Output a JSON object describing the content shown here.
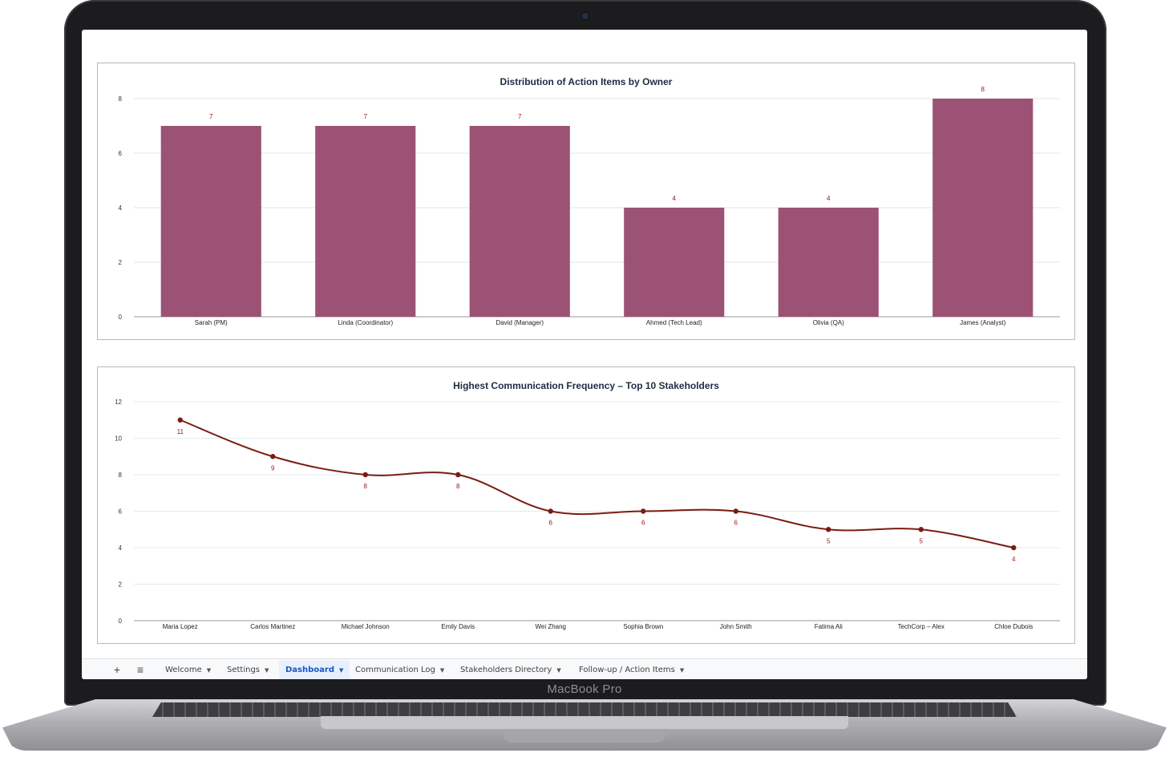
{
  "device": {
    "brand_label": "MacBook Pro"
  },
  "colors": {
    "bar_fill": "#9b5275",
    "line_stroke": "#7b1c12",
    "label_red": "#8b1a1a",
    "active_tab": "#1a56c4"
  },
  "icons": {
    "add_sheet": "plus-icon",
    "all_sheets": "menu-icon",
    "tab_dropdown": "caret-down-icon"
  },
  "chart_data": [
    {
      "type": "bar",
      "title": "Distribution of Action Items by Owner",
      "categories": [
        "Sarah (PM)",
        "Linda (Coordinator)",
        "David (Manager)",
        "Ahmed (Tech Lead)",
        "Olivia (QA)",
        "James (Analyst)"
      ],
      "values": [
        7,
        7,
        7,
        4,
        4,
        8
      ],
      "ylim": [
        0,
        8
      ],
      "yticks": [
        0,
        2,
        4,
        6,
        8
      ],
      "grid": true,
      "data_labels": true,
      "color": "#9b5275"
    },
    {
      "type": "line",
      "title": "Highest Communication Frequency – Top 10 Stakeholders",
      "categories": [
        "Maria Lopez",
        "Carlos Martinez",
        "Michael Johnson",
        "Emily Davis",
        "Wei Zhang",
        "Sophia Brown",
        "John Smith",
        "Fatima Ali",
        "TechCorp – Alex",
        "Chloe Dubois"
      ],
      "values": [
        11,
        9,
        8,
        8,
        6,
        6,
        6,
        5,
        5,
        4
      ],
      "ylim": [
        0,
        12
      ],
      "yticks": [
        0,
        2,
        4,
        6,
        8,
        10,
        12
      ],
      "grid": true,
      "smooth": true,
      "data_labels": true,
      "color": "#7b1c12"
    }
  ],
  "tabbar": {
    "add_label": "+",
    "menu_label": "≡",
    "tabs": [
      {
        "label": "Welcome",
        "active": false
      },
      {
        "label": "Settings",
        "active": false
      },
      {
        "label": "Dashboard",
        "active": true
      },
      {
        "label": "Communication Log",
        "active": false
      },
      {
        "label": "Stakeholders Directory",
        "active": false
      },
      {
        "label": "Follow-up / Action Items",
        "active": false
      }
    ]
  }
}
